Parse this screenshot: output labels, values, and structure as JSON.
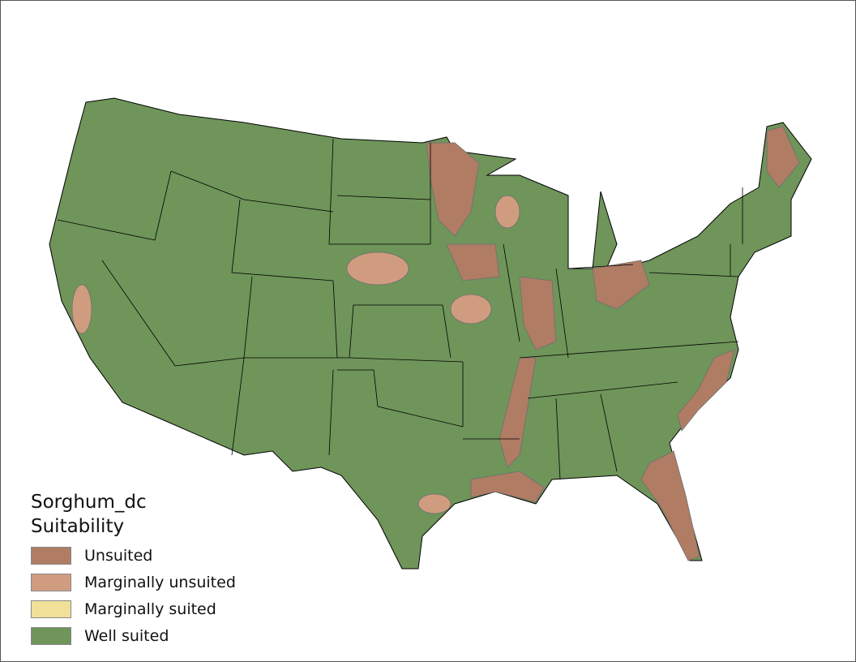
{
  "legend": {
    "title_line1": "Sorghum_dc",
    "title_line2": "Suitability",
    "items": [
      {
        "label": "Unsuited",
        "color": "#b07c64"
      },
      {
        "label": "Marginally unsuited",
        "color": "#d09c80"
      },
      {
        "label": "Marginally suited",
        "color": "#f0e098"
      },
      {
        "label": "Well suited",
        "color": "#6f955a"
      }
    ]
  },
  "map": {
    "boundary_color": "#000000",
    "minor_boundary_color": "#6f6f6f"
  }
}
